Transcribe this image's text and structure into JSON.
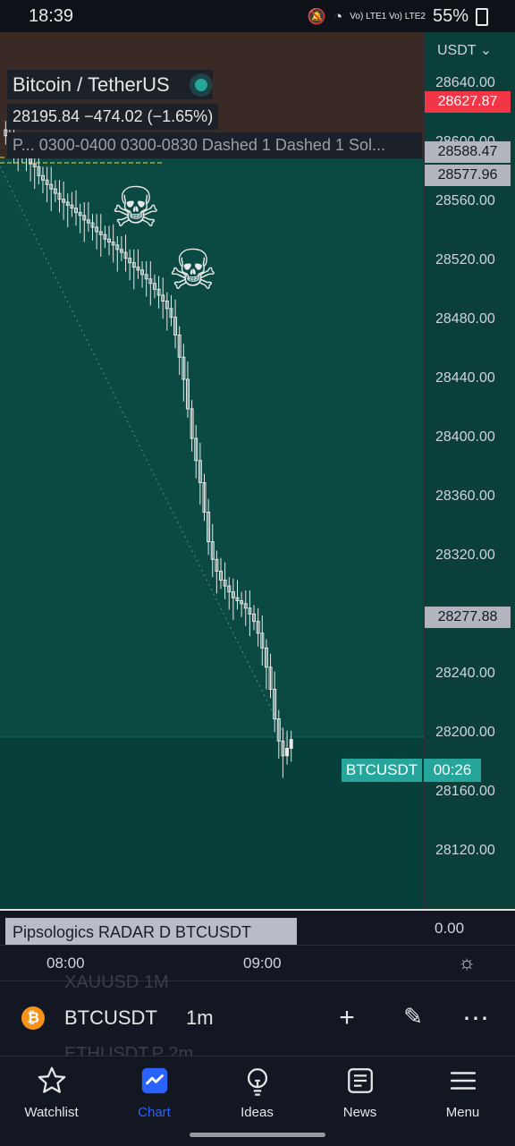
{
  "status_bar": {
    "time": "18:39",
    "network": "Vo) LTE1 Vo) LTE2",
    "battery": "55%"
  },
  "legend": {
    "title": "Bitcoin / TetherUS",
    "price_line": "28195.84  −474.02 (−1.65%)",
    "indicator_line": "P... 0300-0400 0300-0830 Dashed 1 Dashed 1 Sol..."
  },
  "price_axis": {
    "currency": "USDT ⌄",
    "ticks": [
      "28640.00",
      "28600.00",
      "28560.00",
      "28520.00",
      "28480.00",
      "28440.00",
      "28400.00",
      "28360.00",
      "28320.00",
      "28280.00",
      "28240.00",
      "28200.00",
      "28160.00",
      "28120.00"
    ],
    "tags": [
      {
        "label": "28627.87",
        "color": "#f23645"
      },
      {
        "label": "28588.47",
        "color": "#b2b5be"
      },
      {
        "label": "28577.96",
        "color": "#b2b5be"
      },
      {
        "label": "28277.88",
        "color": "#b2b5be"
      }
    ]
  },
  "current_price": {
    "symbol_tag": "BTCUSDT",
    "countdown": "00:26"
  },
  "chart_data": {
    "type": "candlestick",
    "interval": "1m",
    "symbol": "BTCUSDT",
    "x_ticks": [
      "08:00",
      "09:00"
    ],
    "ylim": [
      28100,
      28660
    ],
    "close_series": [
      28605,
      28602,
      28598,
      28596,
      28593,
      28590,
      28586,
      28584,
      28578,
      28575,
      28572,
      28569,
      28566,
      28562,
      28560,
      28558,
      28556,
      28553,
      28551,
      28548,
      28546,
      28543,
      28540,
      28538,
      28535,
      28533,
      28531,
      28528,
      28526,
      28522,
      28519,
      28516,
      28514,
      28511,
      28508,
      28505,
      28501,
      28497,
      28493,
      28488,
      28482,
      28470,
      28455,
      28440,
      28420,
      28400,
      28385,
      28370,
      28350,
      28330,
      28318,
      28310,
      28304,
      28300,
      28296,
      28292,
      28290,
      28288,
      28285,
      28281,
      28276,
      28268,
      28258,
      28245,
      28230,
      28210,
      28195,
      28185,
      28190,
      28196
    ],
    "annotations": [
      "skull",
      "skull"
    ]
  },
  "indicator_pane": {
    "label": "Pipsologics RADAR D BTCUSDT",
    "value": "0.00"
  },
  "toolbar": {
    "symbol": "BTCUSDT",
    "interval": "1m",
    "ghost_above": "XAUUSD        1M",
    "ghost_below": "ETHUSDT.P   2m"
  },
  "nav": {
    "items": [
      {
        "label": "Watchlist",
        "icon": "star-icon"
      },
      {
        "label": "Chart",
        "icon": "chart-icon"
      },
      {
        "label": "Ideas",
        "icon": "lightbulb-icon"
      },
      {
        "label": "News",
        "icon": "news-icon"
      },
      {
        "label": "Menu",
        "icon": "hamburger-icon"
      }
    ],
    "active": "Chart"
  },
  "colors": {
    "up": "#26a69a",
    "plot_bg": "#0a4a43",
    "red_tag": "#f23645",
    "accent": "#2962ff"
  }
}
